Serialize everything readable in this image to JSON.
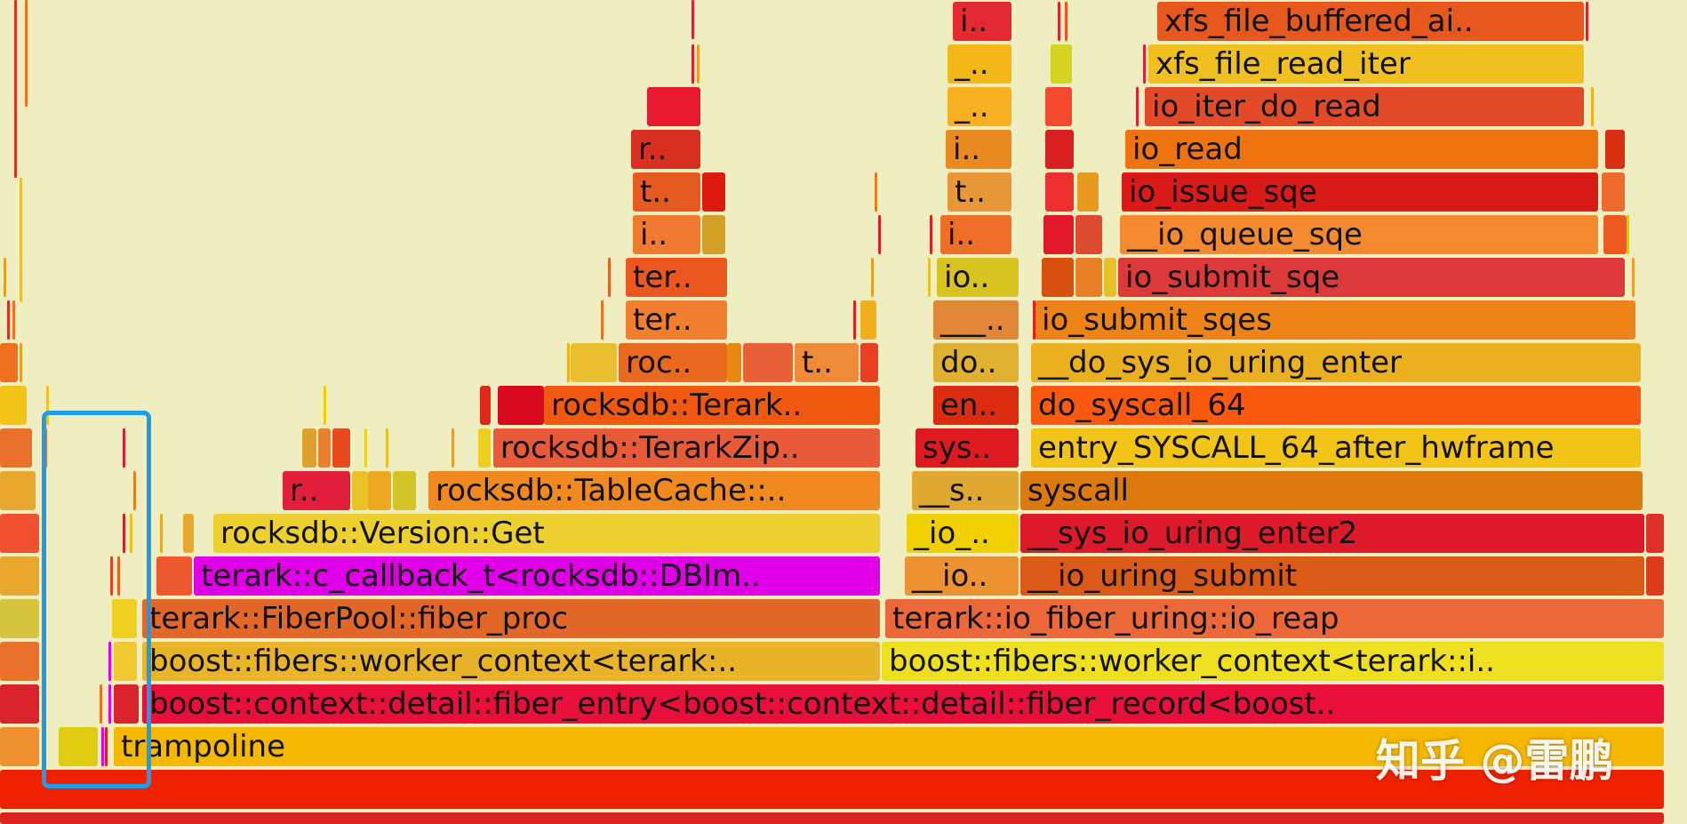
{
  "flamegraph": {
    "background": "#eeeec0",
    "frames": [
      {
        "name": "frame-root",
        "label": "",
        "color": "#ee2200"
      },
      {
        "name": "frame-root-2",
        "label": "",
        "color": "#dd2222"
      },
      {
        "name": "frame-trampoline",
        "label": "trampoline",
        "color": "#f5b800"
      },
      {
        "name": "frame-fiber-entry",
        "label": "boost::context::detail::fiber_entry<boost::context::detail::fiber_record<boost..",
        "color": "#e8103a"
      },
      {
        "name": "frame-worker-context-left",
        "label": "boost::fibers::worker_context<terark:..",
        "color": "#eab42a"
      },
      {
        "name": "frame-worker-context-right",
        "label": "boost::fibers::worker_context<terark::i..",
        "color": "#eee020"
      },
      {
        "name": "frame-fiber-proc",
        "label": "terark::FiberPool::fiber_proc",
        "color": "#e2682a"
      },
      {
        "name": "frame-io-reap",
        "label": "terark::io_fiber_uring::io_reap",
        "color": "#ec6838"
      },
      {
        "name": "frame-c-callback",
        "label": "terark::c_callback_t<rocksdb::DBIm..",
        "color": "#e000e8"
      },
      {
        "name": "frame-io-uring-submit-short",
        "label": "__io..",
        "color": "#ec9230"
      },
      {
        "name": "frame-io-uring-submit",
        "label": "__io_uring_submit",
        "color": "#dc5a18"
      },
      {
        "name": "frame-version-get",
        "label": "rocksdb::Version::Get",
        "color": "#ecd030"
      },
      {
        "name": "frame-io-short-2",
        "label": "_io_..",
        "color": "#f0d000"
      },
      {
        "name": "frame-sys-io-uring-enter2",
        "label": "__sys_io_uring_enter2",
        "color": "#dc1a2a"
      },
      {
        "name": "frame-r-short",
        "label": "r..",
        "color": "#e0203a"
      },
      {
        "name": "frame-table-cache",
        "label": "rocksdb::TableCache::..",
        "color": "#f08a20"
      },
      {
        "name": "frame-s-short",
        "label": "__s..",
        "color": "#e0a830"
      },
      {
        "name": "frame-syscall",
        "label": "syscall",
        "color": "#dc7a10"
      },
      {
        "name": "frame-terark-zip",
        "label": "rocksdb::TerarkZip..",
        "color": "#e85a38"
      },
      {
        "name": "frame-sys-short",
        "label": "sys..",
        "color": "#dc1a20"
      },
      {
        "name": "frame-entry-syscall",
        "label": "entry_SYSCALL_64_after_hwframe",
        "color": "#f2c418"
      },
      {
        "name": "frame-terark-short",
        "label": "rocksdb::Terark..",
        "color": "#f05a10"
      },
      {
        "name": "frame-en-short",
        "label": "en..",
        "color": "#dc2c10"
      },
      {
        "name": "frame-do-syscall",
        "label": "do_syscall_64",
        "color": "#fa5a10"
      },
      {
        "name": "frame-roc-short",
        "label": "roc..",
        "color": "#e86a20"
      },
      {
        "name": "frame-t-short",
        "label": "t..",
        "color": "#ee8a38"
      },
      {
        "name": "frame-do-short",
        "label": "do..",
        "color": "#e0b030"
      },
      {
        "name": "frame-do-sys-io-uring-enter",
        "label": "__do_sys_io_uring_enter",
        "color": "#eab020"
      },
      {
        "name": "frame-ter-short-1",
        "label": "ter..",
        "color": "#f08030"
      },
      {
        "name": "frame-underscore-short",
        "label": "___..",
        "color": "#e08838"
      },
      {
        "name": "frame-io-submit-sqes",
        "label": "io_submit_sqes",
        "color": "#ee8418"
      },
      {
        "name": "frame-ter-short-2",
        "label": "ter..",
        "color": "#ea5820"
      },
      {
        "name": "frame-io-short",
        "label": "io..",
        "color": "#d8c420"
      },
      {
        "name": "frame-io-submit-sqe",
        "label": "io_submit_sqe",
        "color": "#dc3a38"
      },
      {
        "name": "frame-i-short-1",
        "label": "i..",
        "color": "#f07a30"
      },
      {
        "name": "frame-i-short-2",
        "label": "i..",
        "color": "#ee7028"
      },
      {
        "name": "frame-io-queue-sqe",
        "label": "__io_queue_sqe",
        "color": "#f38a30"
      },
      {
        "name": "frame-t-short-2",
        "label": "t..",
        "color": "#e45a20"
      },
      {
        "name": "frame-t-short-3",
        "label": "t..",
        "color": "#e89838"
      },
      {
        "name": "frame-io-issue-sqe",
        "label": "io_issue_sqe",
        "color": "#d81a18"
      },
      {
        "name": "frame-r-short-2",
        "label": "r..",
        "color": "#d83020"
      },
      {
        "name": "frame-i-short-3",
        "label": "i..",
        "color": "#e88a20"
      },
      {
        "name": "frame-io-read",
        "label": "io_read",
        "color": "#ee7410"
      },
      {
        "name": "frame-blank-red",
        "label": "",
        "color": "#e81a30"
      },
      {
        "name": "frame-underscore-short-2",
        "label": "_..",
        "color": "#f8b020"
      },
      {
        "name": "frame-io-iter-do-read",
        "label": "io_iter_do_read",
        "color": "#e24a28"
      },
      {
        "name": "frame-underscore-short-3",
        "label": "_..",
        "color": "#f2b818"
      },
      {
        "name": "frame-xfs-file-read-iter",
        "label": "xfs_file_read_iter",
        "color": "#f0c020"
      },
      {
        "name": "frame-i-short-4",
        "label": "i..",
        "color": "#e22a30"
      },
      {
        "name": "frame-xfs-file-buffered",
        "label": "xfs_file_buffered_ai..",
        "color": "#e6581e"
      }
    ]
  },
  "watermark": {
    "text": "知乎 @雷鹏"
  }
}
